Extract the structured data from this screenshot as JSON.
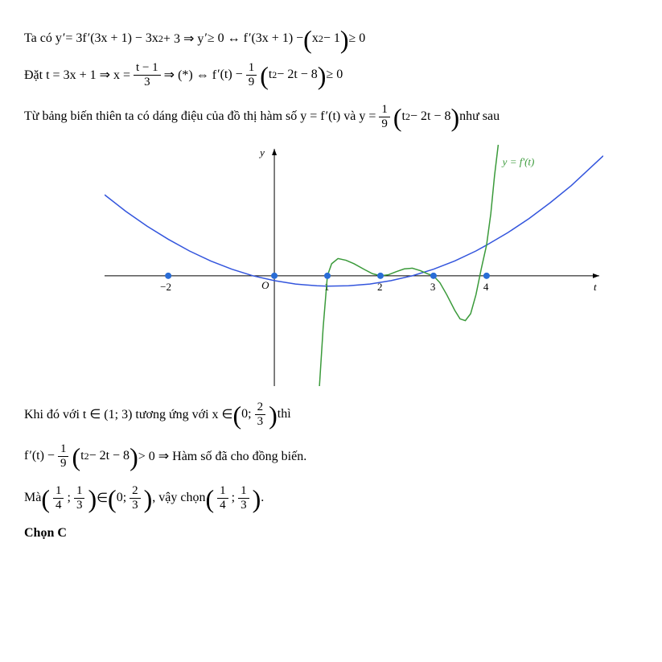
{
  "lines": {
    "l1_a": "Ta có y",
    "l1_b": " = 3f",
    "l1_c": "(3x + 1) − 3x",
    "l1_d": " + 3 ⇒ y",
    "l1_e": " ≥ 0 ↔ f",
    "l1_f": "(3x + 1) − ",
    "l1_g": "x",
    "l1_h": " − 1",
    "l1_i": " ≥ 0",
    "l2_a": "Đặt  t = 3x + 1 ⇒ x = ",
    "l2_num": "t − 1",
    "l2_den": "3",
    "l2_b": " ⇒ (*) ⇔ f",
    "l2_c": "(t) − ",
    "l2_num2": "1",
    "l2_den2": "9",
    "l2_d": "t",
    "l2_e": " − 2t − 8",
    "l2_f": " ≥ 0",
    "l3_a": "Từ bảng biến thiên ta có dáng điệu của đồ thị hàm số  y = f",
    "l3_b": "(t)  và  y = ",
    "l3_num": "1",
    "l3_den": "9",
    "l3_c": "t",
    "l3_d": " − 2t − 8",
    "l3_e": "  như sau",
    "l4_a": "Khi đó với  t ∈ (1; 3)  tương ứng với  x ∈ ",
    "l4_b": "0; ",
    "l4_num": "2",
    "l4_den": "3",
    "l4_c": "  thì",
    "l5_a": "f",
    "l5_b": "(t) − ",
    "l5_num": "1",
    "l5_den": "9",
    "l5_c": "t",
    "l5_d": " − 2t − 8",
    "l5_e": " > 0 ⇒  Hàm số đã cho đồng biến.",
    "l6_a": "Mà ",
    "l6_num1": "1",
    "l6_den1": "4",
    "l6_sep": ";",
    "l6_num2": "1",
    "l6_den2": "3",
    "l6_b": " ∈ ",
    "l6_num3": "2",
    "l6_den3": "3",
    "l6_zero": "0;",
    "l6_c": ", vậy chọn ",
    "l7": "Chọn C"
  },
  "chart": {
    "type": "line",
    "background_color": "#ffffff",
    "axis_color": "#000000",
    "tick_color": "#000000",
    "xlim": [
      -3.2,
      6.2
    ],
    "ylim": [
      -3.2,
      3.8
    ],
    "xticks": [
      -2,
      1,
      2,
      3,
      4
    ],
    "xtick_labels": [
      "−2",
      "1",
      "2",
      "3",
      "4"
    ],
    "origin_label": "O",
    "y_axis_label": "y",
    "x_axis_label": "t",
    "curve_label": "y = f'(t)",
    "marker_color": "#2a6dd6",
    "marker_radius": 4,
    "blue_curve": {
      "color": "#3355dd",
      "width": 1.5,
      "points": [
        [
          -3.2,
          2.35
        ],
        [
          -2.8,
          1.87
        ],
        [
          -2.4,
          1.44
        ],
        [
          -2.0,
          1.06
        ],
        [
          -1.6,
          0.72
        ],
        [
          -1.2,
          0.43
        ],
        [
          -0.8,
          0.19
        ],
        [
          -0.4,
          -0.002
        ],
        [
          0.0,
          -0.14
        ],
        [
          0.4,
          -0.24
        ],
        [
          0.8,
          -0.29
        ],
        [
          1.0,
          -0.3
        ],
        [
          1.4,
          -0.29
        ],
        [
          1.8,
          -0.24
        ],
        [
          2.2,
          -0.14
        ],
        [
          2.6,
          0.0
        ],
        [
          3.0,
          0.19
        ],
        [
          3.4,
          0.43
        ],
        [
          3.8,
          0.72
        ],
        [
          4.0,
          0.89
        ],
        [
          4.4,
          1.25
        ],
        [
          4.8,
          1.66
        ],
        [
          5.2,
          2.12
        ],
        [
          5.6,
          2.62
        ],
        [
          6.2,
          3.48
        ]
      ]
    },
    "green_curve": {
      "color": "#3a9a3a",
      "width": 1.5,
      "points": [
        [
          0.85,
          -3.2
        ],
        [
          0.92,
          -1.5
        ],
        [
          1.0,
          0.0
        ],
        [
          1.08,
          0.35
        ],
        [
          1.2,
          0.5
        ],
        [
          1.35,
          0.45
        ],
        [
          1.5,
          0.35
        ],
        [
          1.7,
          0.18
        ],
        [
          1.85,
          0.06
        ],
        [
          2.0,
          0.0
        ],
        [
          2.15,
          0.03
        ],
        [
          2.3,
          0.12
        ],
        [
          2.45,
          0.2
        ],
        [
          2.6,
          0.22
        ],
        [
          2.75,
          0.15
        ],
        [
          2.9,
          0.05
        ],
        [
          3.0,
          0.0
        ],
        [
          3.12,
          -0.2
        ],
        [
          3.25,
          -0.55
        ],
        [
          3.4,
          -1.0
        ],
        [
          3.5,
          -1.25
        ],
        [
          3.6,
          -1.3
        ],
        [
          3.7,
          -1.1
        ],
        [
          3.8,
          -0.55
        ],
        [
          3.9,
          0.2
        ],
        [
          4.0,
          0.89
        ],
        [
          4.08,
          1.8
        ],
        [
          4.15,
          2.9
        ],
        [
          4.22,
          3.8
        ]
      ]
    },
    "root_markers_x": [
      -2,
      1,
      2,
      3,
      4
    ],
    "extra_marker_x": 0
  }
}
